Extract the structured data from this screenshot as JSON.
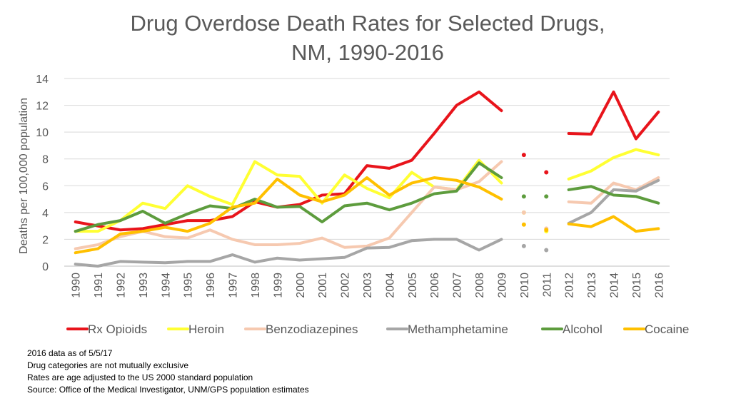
{
  "chart_data": {
    "type": "line",
    "title_lines": [
      "Drug Overdose Death Rates for Selected Drugs,",
      "NM, 1990-2016"
    ],
    "xlabel": "",
    "ylabel": "Deaths per 100,000 population",
    "ylim": [
      0,
      14
    ],
    "yticks": [
      0,
      2,
      4,
      6,
      8,
      10,
      12,
      14
    ],
    "grid": true,
    "legend": "bottom",
    "categories": [
      "1990",
      "1991",
      "1992",
      "1993",
      "1994",
      "1995",
      "1996",
      "1997",
      "1998",
      "1999",
      "2000",
      "2001",
      "2002",
      "2003",
      "2004",
      "2005",
      "2006",
      "2007",
      "2008",
      "2009",
      "2010",
      "2011",
      "2012",
      "2013",
      "2014",
      "2015",
      "2016"
    ],
    "series": [
      {
        "name": "Rx Opioids",
        "color": "#e8141b",
        "values": [
          3.3,
          3.0,
          2.7,
          2.8,
          3.1,
          3.4,
          3.4,
          3.7,
          4.8,
          4.4,
          4.6,
          5.3,
          5.4,
          7.5,
          7.3,
          7.9,
          9.9,
          12.0,
          13.0,
          11.6,
          8.3,
          7.0,
          9.9,
          9.85,
          13.0,
          9.5,
          11.5
        ]
      },
      {
        "name": "Heroin",
        "color": "#ffff33",
        "values": [
          2.6,
          2.6,
          3.4,
          4.7,
          4.3,
          6.0,
          5.2,
          4.6,
          7.8,
          6.8,
          6.7,
          4.7,
          6.8,
          5.8,
          5.1,
          7.0,
          5.9,
          5.7,
          7.9,
          6.2,
          4.0,
          2.6,
          6.5,
          7.1,
          8.1,
          8.7,
          8.3
        ]
      },
      {
        "name": "Benzodiazepines",
        "color": "#f6c9b0",
        "values": [
          1.3,
          1.6,
          2.2,
          2.6,
          2.2,
          2.1,
          2.7,
          2.0,
          1.6,
          1.6,
          1.7,
          2.1,
          1.4,
          1.5,
          2.1,
          4.0,
          5.9,
          5.7,
          6.3,
          7.8,
          4.0,
          2.8,
          4.8,
          4.7,
          6.2,
          5.7,
          6.6
        ]
      },
      {
        "name": "Methamphetamine",
        "color": "#a6a6a6",
        "values": [
          0.15,
          0.0,
          0.35,
          0.3,
          0.25,
          0.35,
          0.35,
          0.85,
          0.3,
          0.6,
          0.45,
          0.55,
          0.65,
          1.35,
          1.4,
          1.9,
          2.0,
          2.0,
          1.2,
          2.0,
          1.5,
          1.2,
          3.2,
          4.0,
          5.7,
          5.6,
          6.4
        ]
      },
      {
        "name": "Alcohol",
        "color": "#5d9c3d",
        "values": [
          2.6,
          3.1,
          3.4,
          4.1,
          3.2,
          3.9,
          4.5,
          4.3,
          5.0,
          4.4,
          4.45,
          3.3,
          4.5,
          4.7,
          4.2,
          4.7,
          5.4,
          5.6,
          7.7,
          6.6,
          5.2,
          5.2,
          5.7,
          5.95,
          5.3,
          5.2,
          4.7
        ]
      },
      {
        "name": "Cocaine",
        "color": "#ffc000",
        "values": [
          1.0,
          1.3,
          2.4,
          2.6,
          2.9,
          2.6,
          3.2,
          4.4,
          4.7,
          6.5,
          5.3,
          4.8,
          5.3,
          6.6,
          5.3,
          6.2,
          6.6,
          6.4,
          5.9,
          5.0,
          3.1,
          2.7,
          3.15,
          2.95,
          3.7,
          2.6,
          2.8
        ]
      }
    ],
    "gap_years_markers_only": [
      "2010",
      "2011"
    ]
  },
  "notes": [
    "2016 data as of 5/5/17",
    "Drug categories are not mutually exclusive",
    "Rates are age adjusted to the US 2000 standard population",
    "Source:  Office of the Medical Investigator, UNM/GPS population estimates"
  ]
}
